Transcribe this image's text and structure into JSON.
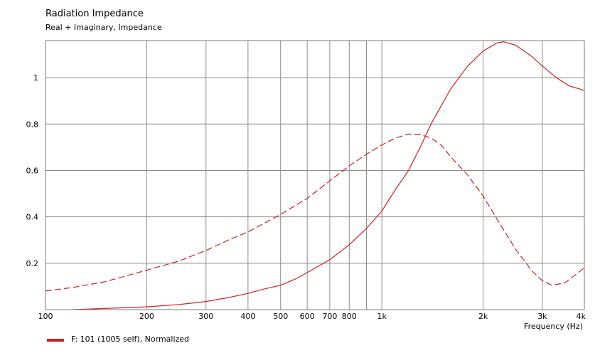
{
  "chart_data": {
    "type": "line",
    "title": "Radiation Impedance",
    "subtitle": "Real + Imaginary, Impedance",
    "xlabel": "Frequency  (Hz)",
    "ylabel": "",
    "x_scale": "log",
    "xlim": [
      100,
      4000
    ],
    "ylim": [
      0,
      1.16
    ],
    "grid": true,
    "x_ticks": [
      {
        "value": 100,
        "label": "100"
      },
      {
        "value": 200,
        "label": "200"
      },
      {
        "value": 300,
        "label": "300"
      },
      {
        "value": 400,
        "label": "400"
      },
      {
        "value": 500,
        "label": "500"
      },
      {
        "value": 600,
        "label": "600"
      },
      {
        "value": 700,
        "label": "700"
      },
      {
        "value": 800,
        "label": "800"
      },
      {
        "value": 900,
        "label": ""
      },
      {
        "value": 1000,
        "label": "1k"
      },
      {
        "value": 2000,
        "label": "2k"
      },
      {
        "value": 3000,
        "label": "3k"
      },
      {
        "value": 4000,
        "label": "4k"
      }
    ],
    "y_ticks": [
      {
        "value": 0.2,
        "label": "0.2"
      },
      {
        "value": 0.4,
        "label": "0.4"
      },
      {
        "value": 0.6,
        "label": "0.6"
      },
      {
        "value": 0.8,
        "label": "0.8"
      },
      {
        "value": 1.0,
        "label": "1"
      }
    ],
    "legend": {
      "position": "bottom-left",
      "label": "F: 101 (1005 self), Normalized"
    },
    "color": "#cc2222",
    "series": [
      {
        "name": "Real",
        "style": "solid",
        "x": [
          120,
          150,
          200,
          250,
          300,
          350,
          400,
          450,
          500,
          550,
          600,
          700,
          800,
          900,
          1000,
          1100,
          1200,
          1300,
          1400,
          1600,
          1800,
          2000,
          2200,
          2300,
          2500,
          2800,
          3000,
          3300,
          3600,
          4000
        ],
        "y": [
          0.0,
          0.005,
          0.012,
          0.022,
          0.035,
          0.052,
          0.07,
          0.09,
          0.105,
          0.13,
          0.16,
          0.215,
          0.28,
          0.35,
          0.425,
          0.52,
          0.6,
          0.7,
          0.8,
          0.95,
          1.05,
          1.115,
          1.15,
          1.155,
          1.14,
          1.09,
          1.05,
          1.0,
          0.965,
          0.945
        ]
      },
      {
        "name": "Imaginary",
        "style": "dashed",
        "x": [
          100,
          120,
          150,
          200,
          250,
          300,
          350,
          400,
          450,
          500,
          600,
          700,
          800,
          900,
          1000,
          1100,
          1200,
          1300,
          1400,
          1500,
          1600,
          1800,
          2000,
          2200,
          2500,
          2800,
          3000,
          3200,
          3500,
          4000
        ],
        "y": [
          0.08,
          0.095,
          0.12,
          0.17,
          0.21,
          0.255,
          0.3,
          0.335,
          0.375,
          0.41,
          0.48,
          0.555,
          0.62,
          0.67,
          0.71,
          0.74,
          0.757,
          0.755,
          0.74,
          0.71,
          0.66,
          0.58,
          0.49,
          0.39,
          0.26,
          0.165,
          0.125,
          0.105,
          0.115,
          0.18
        ]
      }
    ]
  }
}
